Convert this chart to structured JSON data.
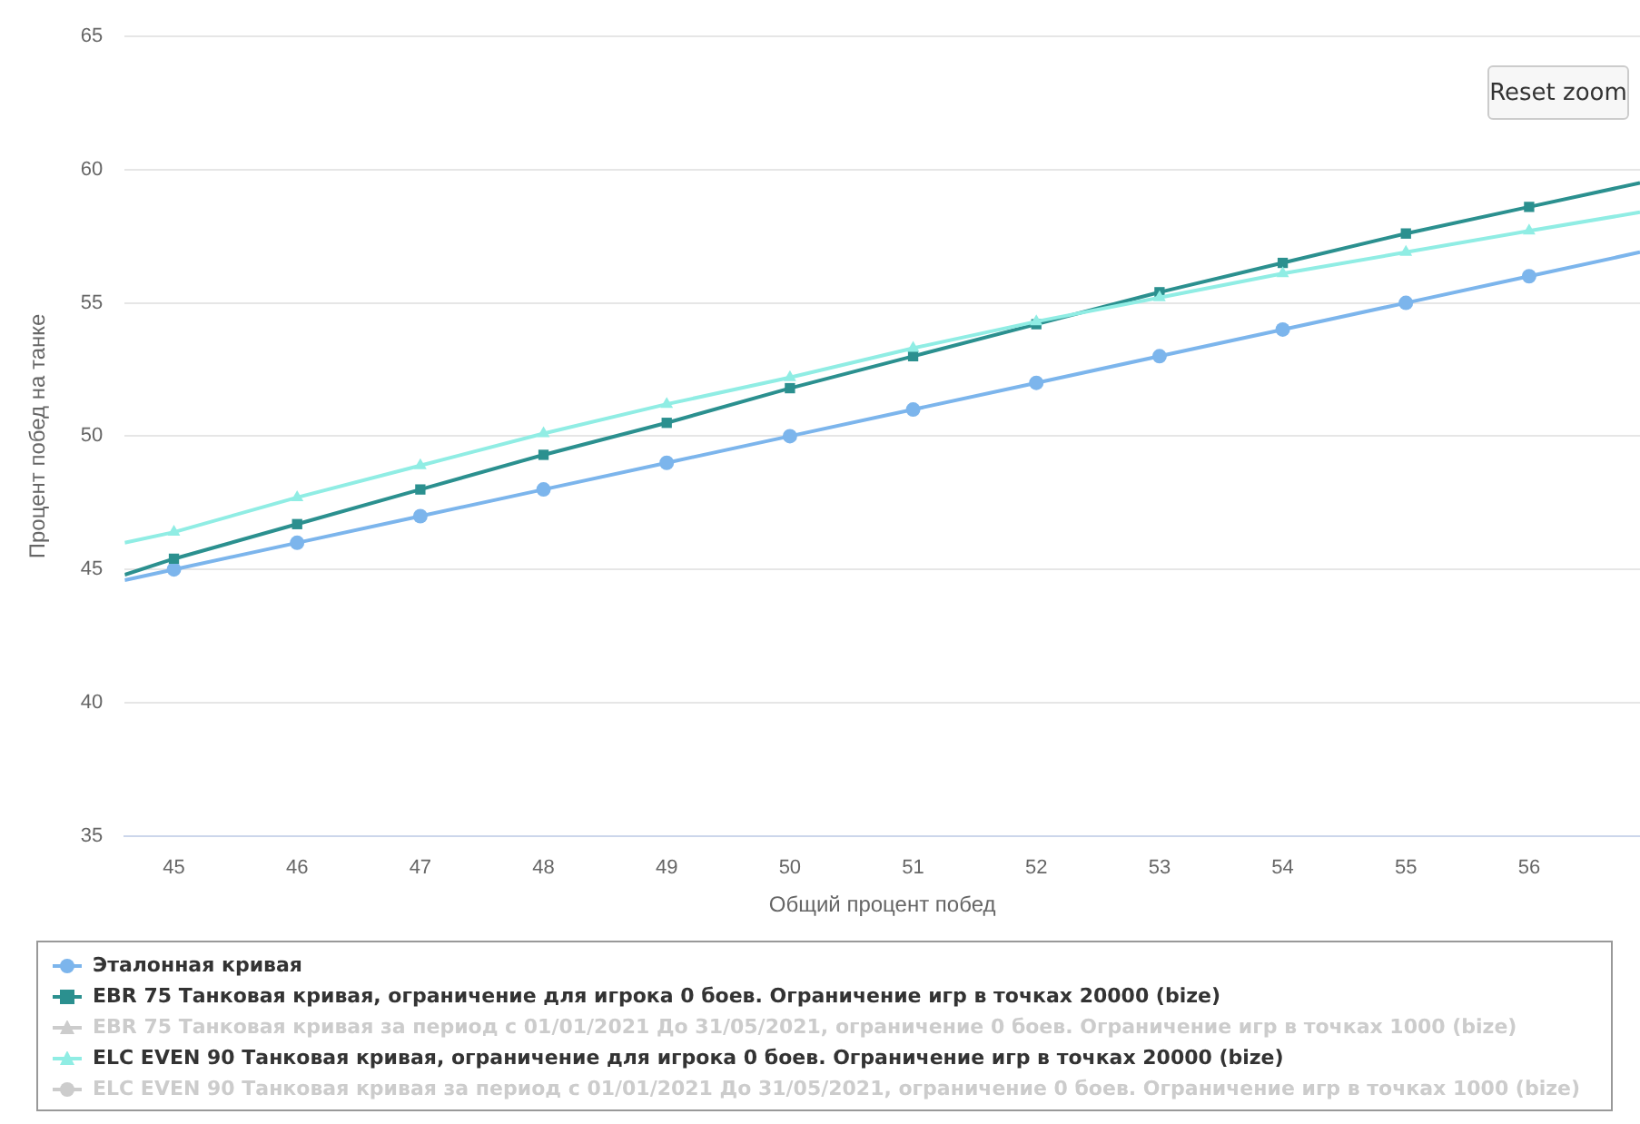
{
  "chart_data": {
    "type": "line",
    "xlabel": "Общий процент побед",
    "ylabel": "Процент побед на танке",
    "x": [
      44.6,
      45,
      46,
      47,
      48,
      49,
      50,
      51,
      52,
      53,
      54,
      55,
      56,
      56.9
    ],
    "xlim": [
      44.6,
      56.9
    ],
    "xticks": [
      45,
      46,
      47,
      48,
      49,
      50,
      51,
      52,
      53,
      54,
      55,
      56
    ],
    "ylim": [
      35,
      65
    ],
    "yticks": [
      35,
      40,
      45,
      50,
      55,
      60,
      65
    ],
    "grid": "y",
    "legend": "bottom",
    "annotations": [
      "Reset zoom"
    ],
    "series": [
      {
        "name": "Эталонная кривая",
        "color": "#7cb5ec",
        "marker": "circle",
        "values": [
          44.6,
          45,
          46,
          47,
          48,
          49,
          50,
          51,
          52,
          53,
          54,
          55,
          56,
          56.9
        ]
      },
      {
        "name": "EBR 75 Танковая кривая, ограничение для игрока 0 боев. Ограничение игр в точках 20000 (bize)",
        "color": "#2b908f",
        "marker": "square",
        "values": [
          44.8,
          45.4,
          46.7,
          48.0,
          49.3,
          50.5,
          51.8,
          53.0,
          54.2,
          55.4,
          56.5,
          57.6,
          58.6,
          59.5
        ]
      },
      {
        "name": "EBR 75 Танковая кривая за период с 01/01/2021 До 31/05/2021, ограничение 0 боев. Ограничение игр в точках 1000 (bize)",
        "color": "#cccccc",
        "marker": "triangle",
        "values": [
          null,
          null,
          null,
          null,
          null,
          null,
          null,
          null,
          null,
          null,
          null,
          null,
          null,
          null
        ]
      },
      {
        "name": "ELC EVEN 90 Танковая кривая, ограничение для игрока 0 боев. Ограничение игр в точках 20000 (bize)",
        "color": "#90ede4",
        "marker": "triangle",
        "values": [
          46.0,
          46.4,
          47.7,
          48.9,
          50.1,
          51.2,
          52.2,
          53.3,
          54.3,
          55.2,
          56.1,
          56.9,
          57.7,
          58.4
        ]
      },
      {
        "name": "ELC EVEN 90 Танковая кривая за период с 01/01/2021 До 31/05/2021, ограничение 0 боев. Ограничение игр в точках 1000 (bize)",
        "color": "#cccccc",
        "marker": "circle",
        "values": [
          null,
          null,
          null,
          null,
          null,
          null,
          null,
          null,
          null,
          null,
          null,
          null,
          null,
          null
        ]
      }
    ]
  }
}
